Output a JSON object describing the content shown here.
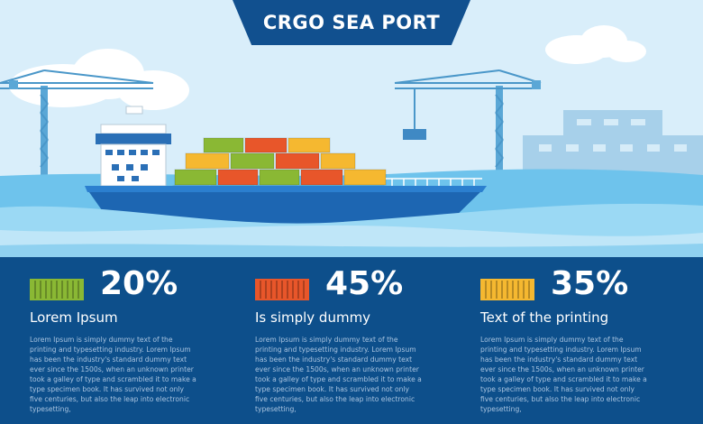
{
  "header": {
    "title": "CRGO SEA PORT"
  },
  "stats": [
    {
      "percent": "20%",
      "label": "Lorem Ipsum",
      "color": "#8ab834",
      "icon": "container-icon",
      "description": "Lorem Ipsum is simply dummy text of the printing and typesetting industry. Lorem Ipsum has been the industry's standard dummy text ever since the 1500s, when an unknown printer took a galley of type and scrambled it to make a type specimen book. It has survived not only five centuries, but also the leap into electronic typesetting,"
    },
    {
      "percent": "45%",
      "label": "Is simply dummy",
      "color": "#e8562a",
      "icon": "container-icon",
      "description": "Lorem Ipsum is simply dummy text of the printing and typesetting industry. Lorem Ipsum has been the industry's standard dummy text ever since the 1500s, when an unknown printer took a galley of type and scrambled it to make a type specimen book. It has survived not only five centuries, but also the leap into electronic typesetting,"
    },
    {
      "percent": "35%",
      "label": "Text of the printing",
      "color": "#f5b830",
      "icon": "container-icon",
      "description": "Lorem Ipsum is simply dummy text of the printing and typesetting industry. Lorem Ipsum has been the industry's standard dummy text ever since the 1500s, when an unknown printer took a galley of type and scrambled it to make a type specimen book. It has survived not only five centuries, but also the leap into electronic typesetting,"
    }
  ]
}
